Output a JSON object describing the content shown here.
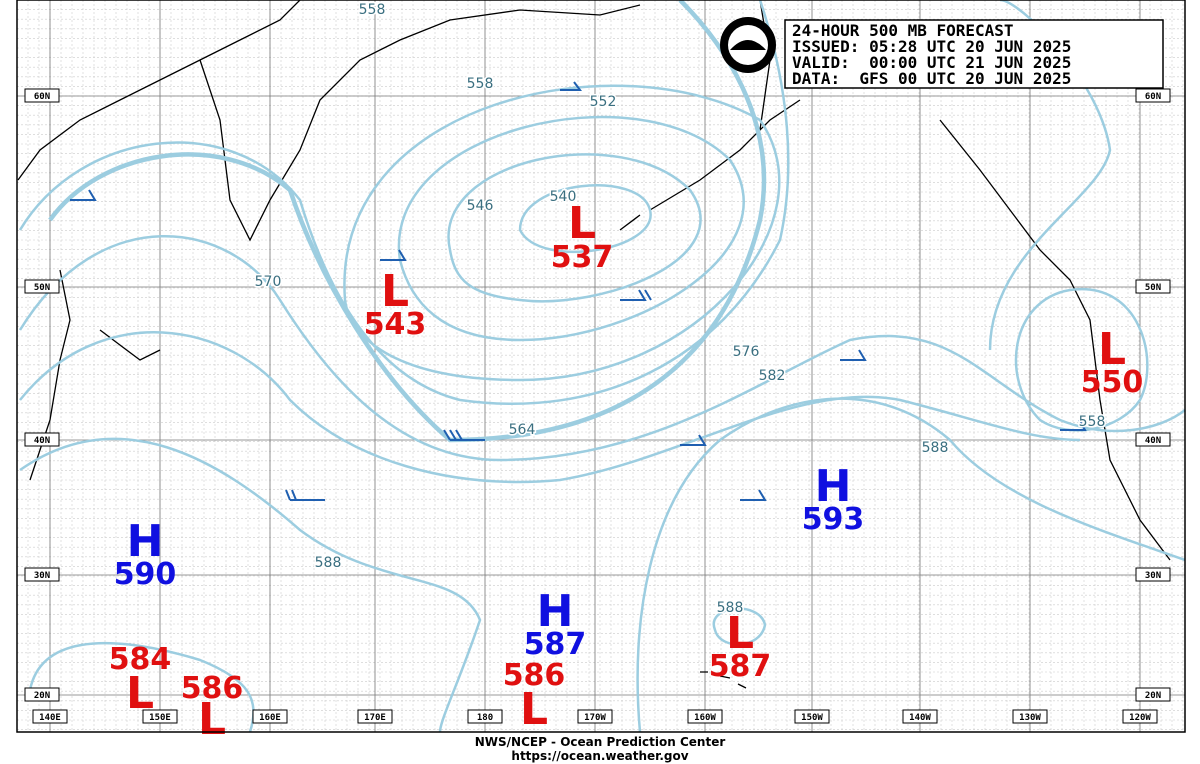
{
  "header": {
    "lines": [
      "24-HOUR 500 MB FORECAST",
      "ISSUED: 05:28 UTC 20 JUN 2025",
      "VALID:  00:00 UTC 21 JUN 2025",
      "DATA:  GFS 00 UTC 20 JUN 2025"
    ]
  },
  "footer": {
    "lines": [
      "NWS/NCEP - Ocean Prediction Center",
      "https://ocean.weather.gov"
    ]
  },
  "latitude_labels": [
    "60N",
    "50N",
    "40N",
    "30N",
    "20N"
  ],
  "longitude_labels": [
    "140E",
    "150E",
    "160E",
    "170E",
    "180",
    "170W",
    "160W",
    "150W",
    "140W",
    "130W",
    "120W"
  ],
  "centers": [
    {
      "symbol": "H",
      "value": 590
    },
    {
      "symbol": "H",
      "value": 587
    },
    {
      "symbol": "H",
      "value": 593
    },
    {
      "symbol": "L",
      "value": 584
    },
    {
      "symbol": "L",
      "value": 586
    },
    {
      "symbol": "L",
      "value": 586
    },
    {
      "symbol": "L",
      "value": 543
    },
    {
      "symbol": "L",
      "value": 537
    },
    {
      "symbol": "L",
      "value": 587
    },
    {
      "symbol": "L",
      "value": 550
    }
  ],
  "contour_labels": [
    558,
    558,
    552,
    546,
    540,
    570,
    564,
    576,
    582,
    588,
    588,
    588,
    558
  ]
}
